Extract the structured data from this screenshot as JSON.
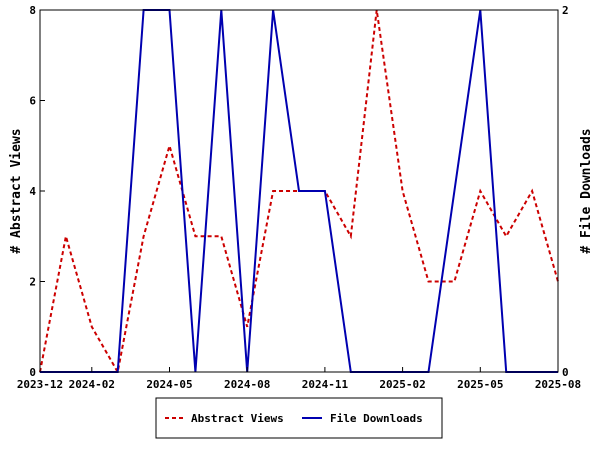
{
  "chart_data": {
    "type": "line",
    "x": [
      "2023-12",
      "2024-01",
      "2024-02",
      "2024-03",
      "2024-04",
      "2024-05",
      "2024-06",
      "2024-07",
      "2024-08",
      "2024-09",
      "2024-10",
      "2024-11",
      "2024-12",
      "2025-01",
      "2025-02",
      "2025-03",
      "2025-04",
      "2025-05",
      "2025-06",
      "2025-07",
      "2025-08"
    ],
    "x_tick_labels": [
      "2023-12",
      "2024-02",
      "2024-05",
      "2024-08",
      "2024-11",
      "2025-02",
      "2025-05",
      "2025-08"
    ],
    "ylabel": "# Abstract Views",
    "y2label": "# File Downloads",
    "ylim": [
      0,
      8
    ],
    "y2lim": [
      0,
      2
    ],
    "y_ticks": [
      "0",
      "2",
      "4",
      "6",
      "8"
    ],
    "y2_ticks": [
      "0",
      "2"
    ],
    "grid": false,
    "legend_position": "bottom",
    "series": [
      {
        "name": "Abstract Views",
        "axis": "left",
        "color": "#cc0000",
        "dash": "dashed",
        "values": [
          0,
          3,
          1,
          0,
          3,
          5,
          3,
          3,
          1,
          4,
          4,
          4,
          3,
          8,
          4,
          2,
          2,
          4,
          3,
          4,
          2
        ]
      },
      {
        "name": "File Downloads",
        "axis": "right",
        "color": "#0000b0",
        "dash": "solid",
        "values": [
          0,
          0,
          0,
          0,
          2,
          2,
          0,
          2,
          0,
          2,
          1,
          1,
          0,
          0,
          0,
          0,
          1,
          2,
          0,
          0,
          0
        ]
      }
    ]
  }
}
